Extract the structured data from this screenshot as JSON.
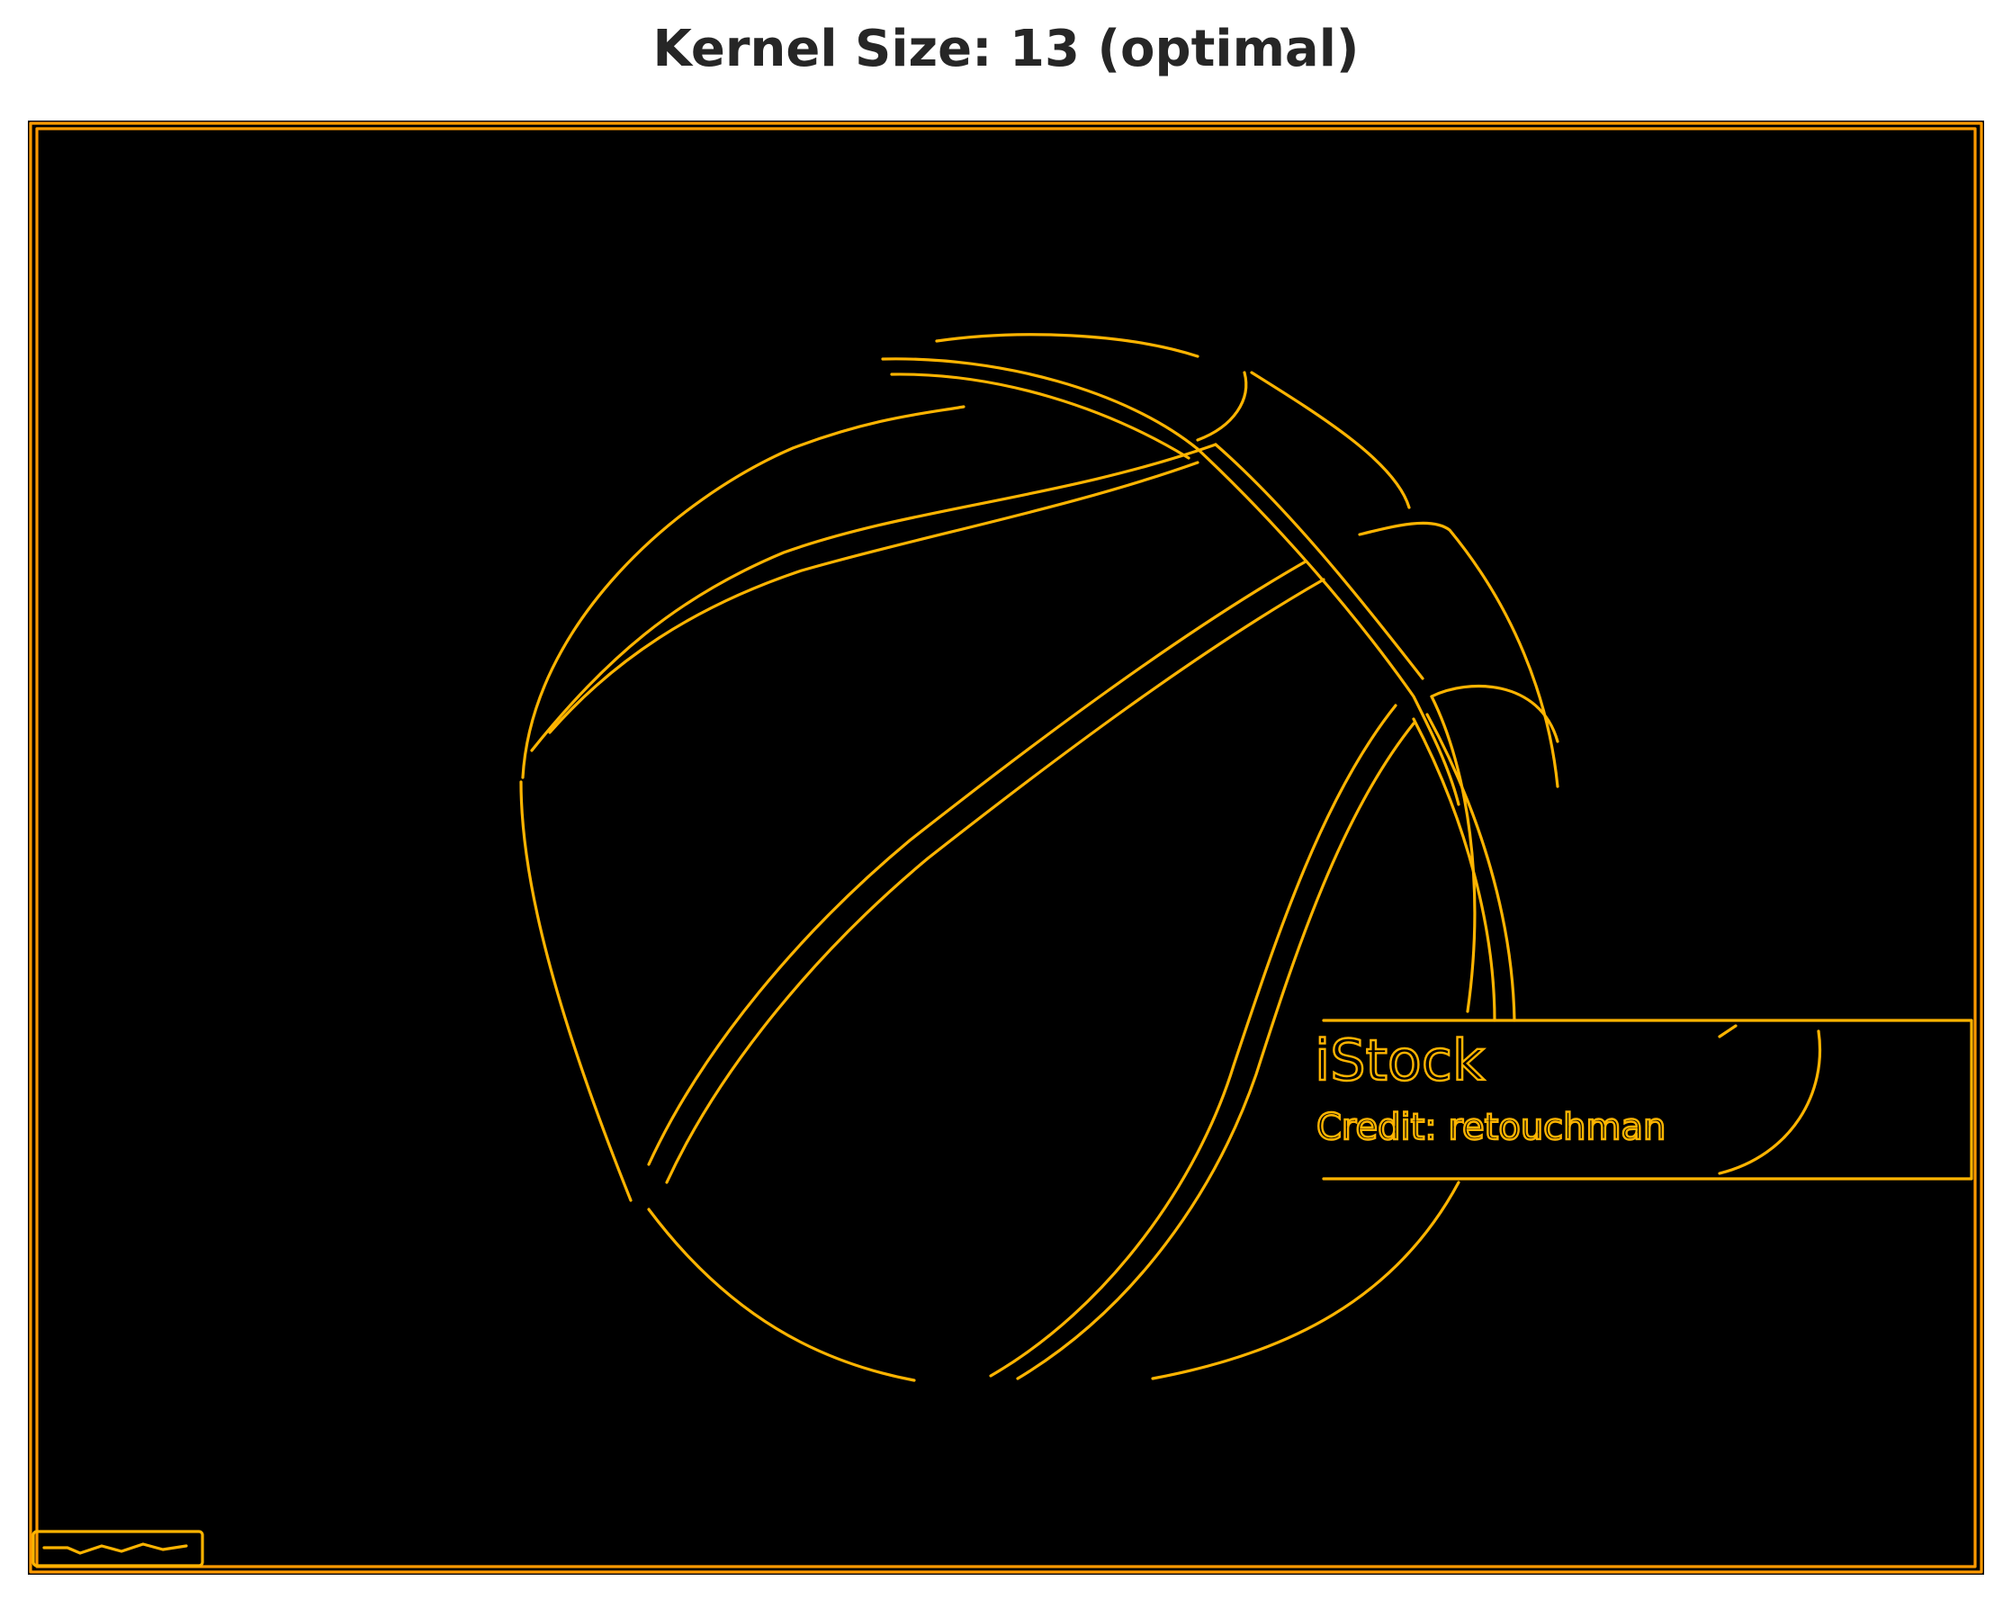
{
  "figure": {
    "title": "Kernel Size: 13 (optimal)"
  },
  "image": {
    "background_color": "#000000",
    "edge_color": "#ffb400",
    "frame_color": "#ff9a00",
    "watermark": {
      "brand": "iStock",
      "credit": "Credit: retouchman"
    }
  }
}
